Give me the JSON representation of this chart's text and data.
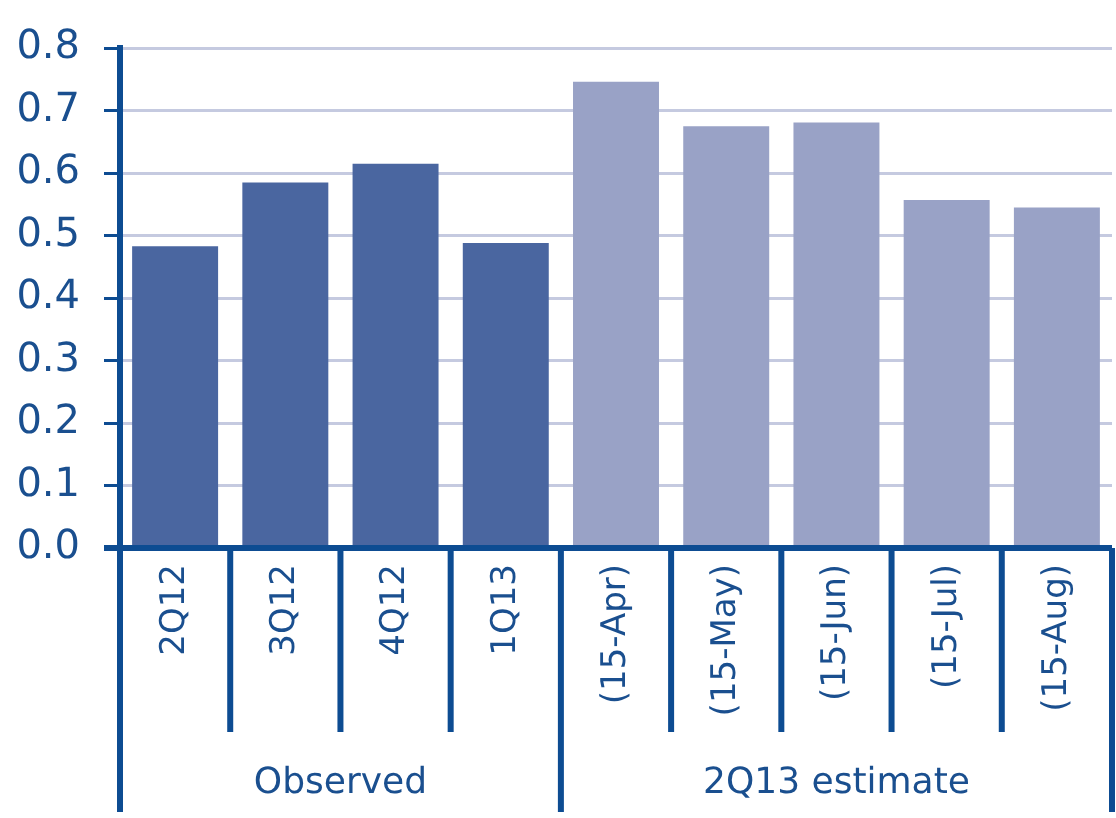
{
  "chart_data": {
    "type": "bar",
    "categories": [
      "2Q12",
      "3Q12",
      "4Q12",
      "1Q13",
      "(15-Apr)",
      "(15-May)",
      "(15-Jun)",
      "(15-Jul)",
      "(15-Aug)"
    ],
    "values": [
      0.483,
      0.585,
      0.615,
      0.488,
      0.746,
      0.675,
      0.681,
      0.557,
      0.545
    ],
    "colors": [
      "#4a66a0",
      "#4a66a0",
      "#4a66a0",
      "#4a66a0",
      "#99a2c6",
      "#99a2c6",
      "#99a2c6",
      "#99a2c6",
      "#99a2c6"
    ],
    "ylim": [
      0,
      0.8
    ],
    "yticks": [
      {
        "value": 0,
        "label": "0.0"
      },
      {
        "value": 0.1,
        "label": "0.1"
      },
      {
        "value": 0.2,
        "label": "0.2"
      },
      {
        "value": 0.3,
        "label": "0.3"
      },
      {
        "value": 0.4,
        "label": "0.4"
      },
      {
        "value": 0.5,
        "label": "0.5"
      },
      {
        "value": 0.6,
        "label": "0.6"
      },
      {
        "value": 0.7,
        "label": "0.7"
      },
      {
        "value": 0.8,
        "label": "0.8"
      }
    ],
    "grid": "y",
    "legend": false,
    "annotations": [
      "Observed",
      "2Q13 estimate"
    ]
  }
}
